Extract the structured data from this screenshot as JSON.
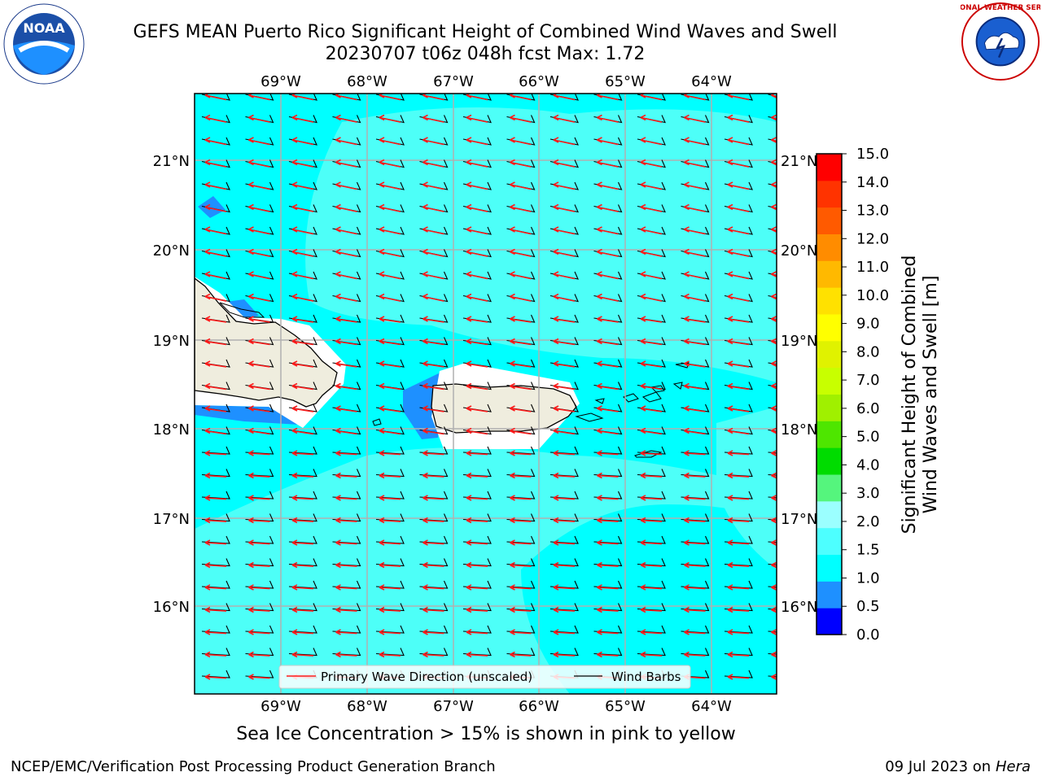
{
  "title": {
    "line1": "GEFS MEAN Puerto Rico Significant Height of Combined Wind Waves and Swell",
    "line2": "20230707 t06z 048h fcst   Max: 1.72"
  },
  "logos": {
    "left": "NOAA",
    "right_text": "NATIONAL WEATHER SERVICE"
  },
  "map": {
    "lon_ticks": [
      "69°W",
      "68°W",
      "67°W",
      "66°W",
      "65°W",
      "64°W"
    ],
    "lat_ticks_left": [
      "21°N",
      "20°N",
      "19°N",
      "18°N",
      "17°N",
      "16°N"
    ],
    "lat_ticks_right": [
      "21°N",
      "20°N",
      "19°N",
      "18°N",
      "17°N",
      "16°N"
    ],
    "legend": {
      "primary": "Primary Wave Direction (unscaled)",
      "barbs": "Wind Barbs"
    },
    "colors": {
      "ocean_main": "#00ffff",
      "ocean_light": "#4dfff8",
      "shallow": "#1e90ff",
      "land": "#efedde",
      "arrow": "#ff1a1a"
    }
  },
  "colorbar": {
    "label_line1": "Significant Height of Combined",
    "label_line2": "Wind Waves and Swell [m]",
    "ticks": [
      "15.0",
      "14.0",
      "13.0",
      "12.0",
      "11.0",
      "10.0",
      "9.0",
      "8.0",
      "7.0",
      "6.0",
      "5.0",
      "4.0",
      "3.0",
      "2.0",
      "1.5",
      "1.0",
      "0.5",
      "0.0"
    ],
    "colors": [
      "#0000ff",
      "#1e90ff",
      "#00ffff",
      "#4dffff",
      "#9bffff",
      "#55f57d",
      "#00dc00",
      "#4ee600",
      "#a0f000",
      "#c8ff00",
      "#e0f200",
      "#ffff00",
      "#ffe100",
      "#ffb900",
      "#ff8c00",
      "#ff5a00",
      "#ff3300",
      "#ff0000"
    ]
  },
  "subcaption": "Sea Ice Concentration > 15% is shown in pink to yellow",
  "footer": {
    "left": "NCEP/EMC/Verification Post Processing Product Generation Branch",
    "right_prefix": "09 Jul 2023 on ",
    "right_host": "Hera"
  }
}
